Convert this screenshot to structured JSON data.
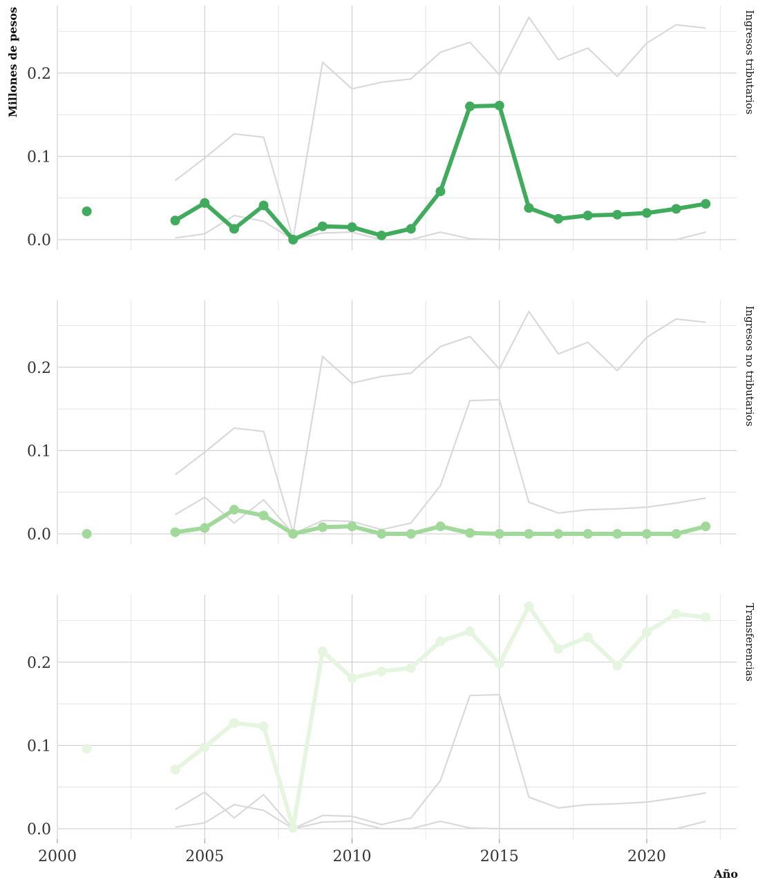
{
  "chart_data": {
    "type": "line",
    "ylabel": "Millones de pesos",
    "xlabel": "Año",
    "xlim": [
      2000,
      2023
    ],
    "ylim": [
      0,
      0.27
    ],
    "x_ticks": [
      "2000",
      "2005",
      "2010",
      "2015",
      "2020"
    ],
    "y_ticks": [
      "0.0",
      "0.1",
      "0.2"
    ],
    "x": [
      2001,
      2004,
      2005,
      2006,
      2007,
      2008,
      2009,
      2010,
      2011,
      2012,
      2013,
      2014,
      2015,
      2016,
      2017,
      2018,
      2019,
      2020,
      2021,
      2022
    ],
    "series": [
      {
        "name": "Ingresos tributarios",
        "color": "#41ab5d",
        "values": [
          0.034,
          0.023,
          0.044,
          0.013,
          0.041,
          0.0,
          0.016,
          0.015,
          0.005,
          0.013,
          0.058,
          0.16,
          0.161,
          0.038,
          0.025,
          0.029,
          0.03,
          0.032,
          0.037,
          0.043
        ]
      },
      {
        "name": "Ingresos no tributarios",
        "color": "#a1d99b",
        "values": [
          0.0,
          0.002,
          0.007,
          0.029,
          0.022,
          0.0,
          0.008,
          0.009,
          0.0,
          0.0,
          0.009,
          0.001,
          0.0,
          0.0,
          0.0,
          0.0,
          0.0,
          0.0,
          0.0,
          0.009
        ]
      },
      {
        "name": "Transferencias",
        "color": "#e5f5e0",
        "values": [
          0.096,
          0.071,
          0.098,
          0.127,
          0.123,
          0.001,
          0.213,
          0.181,
          0.189,
          0.193,
          0.225,
          0.237,
          0.198,
          0.267,
          0.216,
          0.23,
          0.196,
          0.236,
          0.258,
          0.254
        ]
      }
    ],
    "grid": true,
    "background_line_color": "#d9d9d9"
  }
}
